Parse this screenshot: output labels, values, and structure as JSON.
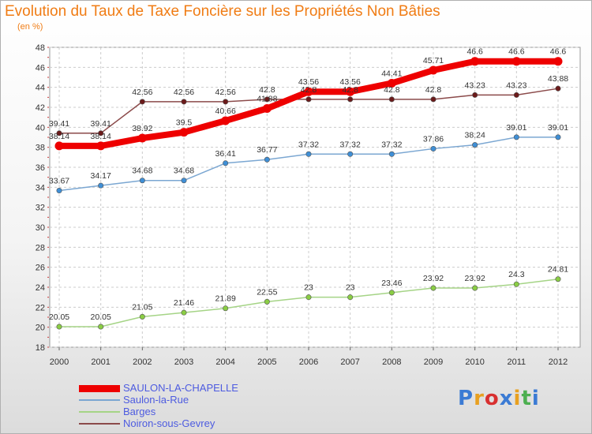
{
  "header": {
    "title": "Evolution du Taux de Taxe Foncière sur les Propriétés Non Bâties",
    "unit": "(en %)"
  },
  "logo": {
    "text": "Proxiti",
    "colors": [
      "#3b7bd4",
      "#e8a020",
      "#d83030",
      "#3b7bd4",
      "#e8a020",
      "#4caf50",
      "#3b7bd4"
    ]
  },
  "chart_data": {
    "type": "line",
    "title": "Evolution du Taux de Taxe Foncière sur les Propriétés Non Bâties",
    "ylabel": "(en %)",
    "xlabel": "",
    "x": [
      "2000",
      "2001",
      "2002",
      "2003",
      "2004",
      "2005",
      "2006",
      "2007",
      "2008",
      "2009",
      "2010",
      "2011",
      "2012"
    ],
    "ylim": [
      18,
      48
    ],
    "yticks": [
      18,
      20,
      22,
      24,
      26,
      28,
      30,
      32,
      34,
      36,
      38,
      40,
      42,
      44,
      46,
      48
    ],
    "grid": true,
    "legend_position": "bottom-left",
    "series": [
      {
        "name": "SAULON-LA-CHAPELLE",
        "color": "#ee0000",
        "point_color": "#ee0000",
        "width": 8,
        "point_radius": 5.5,
        "values": [
          38.14,
          38.14,
          38.92,
          39.5,
          40.66,
          41.88,
          43.56,
          43.56,
          44.41,
          45.71,
          46.6,
          46.6,
          46.6
        ],
        "labels": [
          "38.14",
          "38.14",
          "38.92",
          "39.5",
          "40.66",
          "41.88",
          "43.56",
          "43.56",
          "44.41",
          "45.71",
          "46.6",
          "46.6",
          "46.6"
        ]
      },
      {
        "name": "Saulon-la-Rue",
        "color": "#7ba7d2",
        "point_color": "#3f8fd6",
        "width": 1.5,
        "point_radius": 3.2,
        "values": [
          33.67,
          34.17,
          34.68,
          34.68,
          36.41,
          36.77,
          37.32,
          37.32,
          37.32,
          37.86,
          38.24,
          39.01,
          39.01
        ],
        "labels": [
          "33.67",
          "34.17",
          "34.68",
          "34.68",
          "36.41",
          "36.77",
          "37.32",
          "37.32",
          "37.32",
          "37.86",
          "38.24",
          "39.01",
          "39.01"
        ]
      },
      {
        "name": "Barges",
        "color": "#a5d486",
        "point_color": "#8acd44",
        "width": 1.5,
        "point_radius": 3.2,
        "values": [
          20.05,
          20.05,
          21.05,
          21.46,
          21.89,
          22.55,
          23,
          23,
          23.46,
          23.92,
          23.92,
          24.3,
          24.81
        ],
        "labels": [
          "20.05",
          "20.05",
          "21.05",
          "21.46",
          "21.89",
          "22.55",
          "23",
          "23",
          "23.46",
          "23.92",
          "23.92",
          "24.3",
          "24.81"
        ]
      },
      {
        "name": "Noiron-sous-Gevrey",
        "color": "#8b4a4a",
        "point_color": "#6b1a1a",
        "width": 1.5,
        "point_radius": 3.2,
        "values": [
          39.41,
          39.41,
          42.56,
          42.56,
          42.56,
          42.8,
          42.8,
          42.8,
          42.8,
          42.8,
          43.23,
          43.23,
          43.88
        ],
        "labels": [
          "39.41",
          "39.41",
          "42.56",
          "42.56",
          "42.56",
          "42.8",
          "42.8",
          "42.8",
          "42.8",
          "42.8",
          "43.23",
          "43.23",
          "43.88"
        ]
      }
    ]
  }
}
